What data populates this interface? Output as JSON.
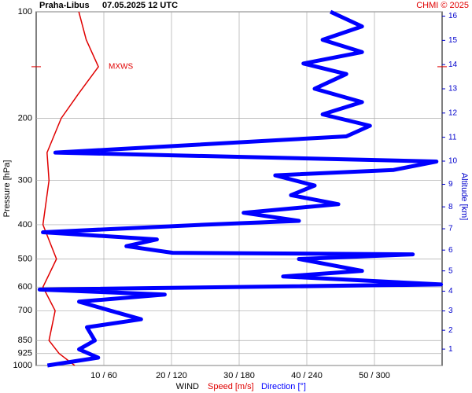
{
  "chart_data": {
    "type": "line",
    "title": "Praha-Libus",
    "subtitle": "07.05.2025 12 UTC",
    "credit": "CHMI © 2025",
    "ylabel": "Pressure [hPa]",
    "y2label": "Altitude [km]",
    "xlabel": "WIND",
    "xlabel_speed": "Speed [m/s]",
    "xlabel_direction": "Direction [°]",
    "ylim": [
      100,
      1000
    ],
    "yscale": "log",
    "yticks": [
      100,
      200,
      300,
      400,
      500,
      600,
      700,
      850,
      925,
      1000
    ],
    "y2ticks": [
      1,
      2,
      3,
      4,
      5,
      6,
      7,
      8,
      9,
      10,
      11,
      12,
      13,
      14,
      15,
      16
    ],
    "y2scale": "standard-atmosphere",
    "xlim": [
      0,
      60
    ],
    "x2lim": [
      0,
      360
    ],
    "xticks": [
      {
        "value": 10,
        "label": "10 / 60"
      },
      {
        "value": 20,
        "label": "20 / 120"
      },
      {
        "value": 30,
        "label": "30 / 180"
      },
      {
        "value": 40,
        "label": "40 / 240"
      },
      {
        "value": 50,
        "label": "50 / 300"
      }
    ],
    "grid": true,
    "annotation": {
      "text": "MXWS",
      "pressure": 143
    },
    "series": [
      {
        "name": "Speed [m/s]",
        "color": "#e00000",
        "axis": "x",
        "pressure": [
          100,
          120,
          143,
          170,
          200,
          250,
          300,
          400,
          500,
          600,
          700,
          850,
          925,
          1000
        ],
        "values": [
          6.3,
          7.4,
          9.2,
          6.3,
          3.7,
          1.6,
          1.9,
          1,
          3,
          1,
          2.8,
          1.9,
          3.4,
          5.7
        ]
      },
      {
        "name": "Direction [°]",
        "color": "#0000ff",
        "axis": "x2",
        "pressure": [
          100,
          110,
          120,
          130,
          140,
          150,
          165,
          180,
          195,
          210,
          225,
          250,
          265,
          280,
          290,
          310,
          330,
          350,
          370,
          390,
          400,
          420,
          440,
          460,
          480,
          485,
          500,
          540,
          560,
          590,
          610,
          630,
          660,
          700,
          740,
          780,
          850,
          900,
          950,
          1000
        ],
        "values": [
          261,
          289,
          254,
          289,
          237,
          275,
          247,
          289,
          254,
          296,
          275,
          17,
          355,
          317,
          212,
          247,
          226,
          268,
          184,
          233,
          149,
          6,
          107,
          80,
          121,
          334,
          233,
          289,
          219,
          359,
          3,
          114,
          38,
          66,
          93,
          45,
          52,
          38,
          55,
          10
        ]
      }
    ]
  }
}
